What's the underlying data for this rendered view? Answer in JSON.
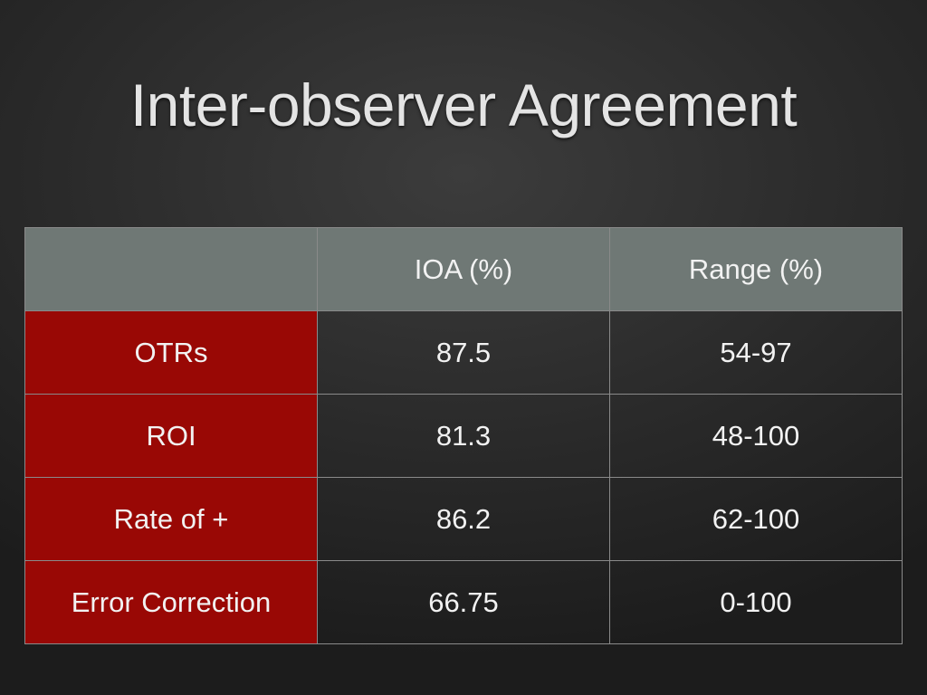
{
  "title": "Inter-observer Agreement",
  "table": {
    "header": [
      "IOA (%)",
      "Range (%)"
    ],
    "rows": [
      [
        "OTRs",
        "87.5",
        "54-97"
      ],
      [
        "ROI",
        "81.3",
        "48-100"
      ],
      [
        "Rate of +",
        "86.2",
        "62-100"
      ],
      [
        "Error Correction",
        "66.75",
        "0-100"
      ]
    ]
  }
}
